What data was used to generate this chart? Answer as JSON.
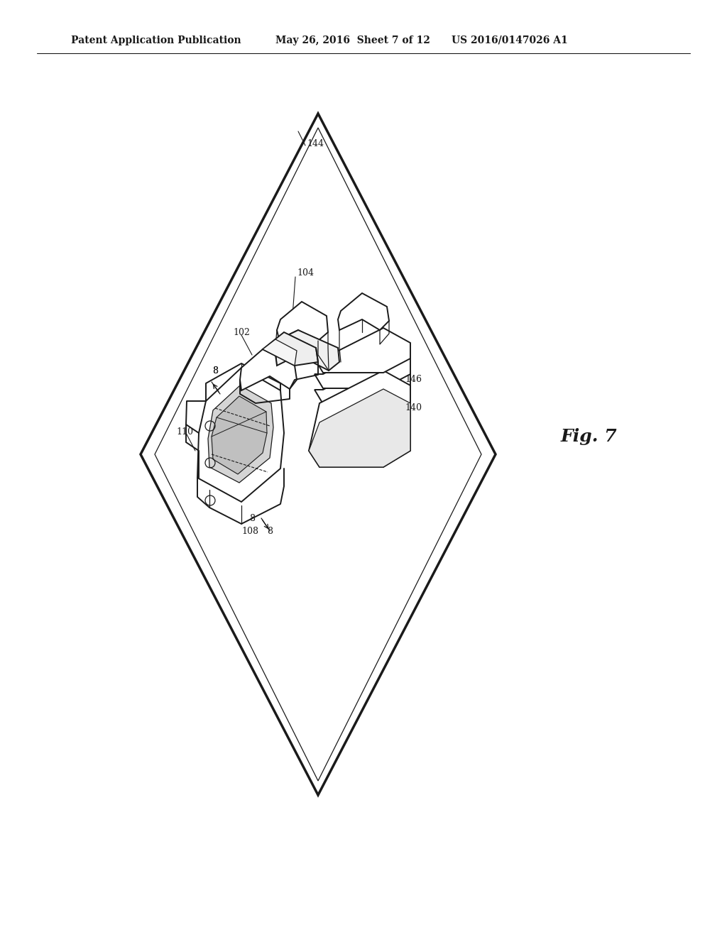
{
  "header_left": "Patent Application Publication",
  "header_mid": "May 26, 2016  Sheet 7 of 12",
  "header_right": "US 2016/0147026 A1",
  "fig_label": "Fig. 7",
  "bg_color": "#ffffff",
  "lc": "#1a1a1a",
  "lw_thick": 2.5,
  "lw_main": 1.4,
  "lw_thin": 0.9,
  "label_fs": 9,
  "header_fs": 10
}
